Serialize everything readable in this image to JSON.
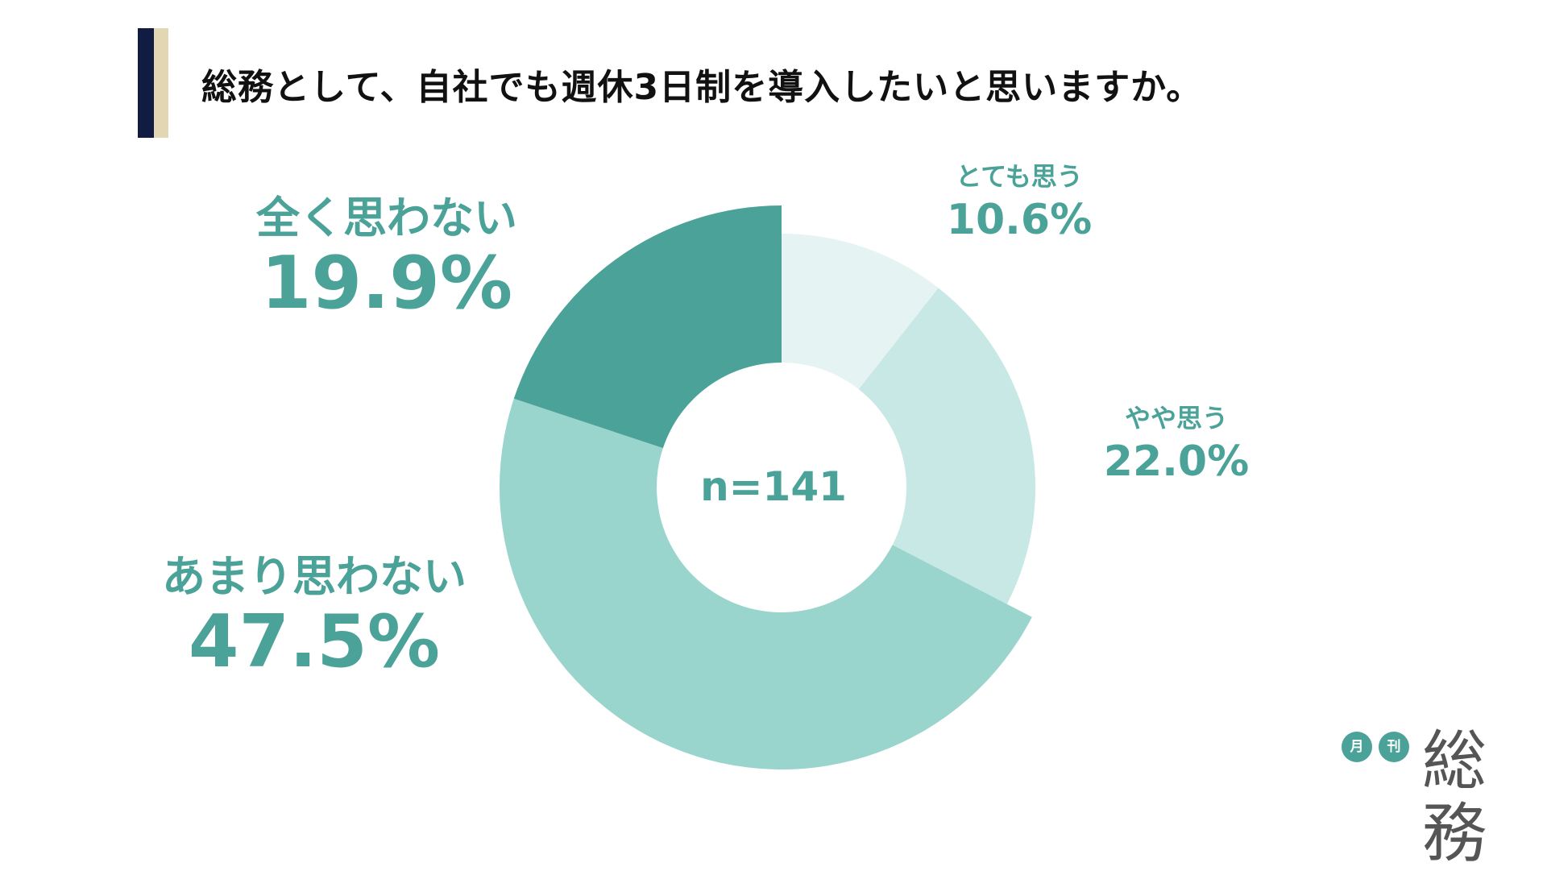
{
  "title": "総務として、自社でも週休3日制を導入したいと思いますか。",
  "center_text": "n=141",
  "brand": {
    "circle1": "月",
    "circle2": "刊",
    "wordmark": "総務"
  },
  "colors": {
    "navy_bar": "#101c42",
    "beige_bar": "#e2d7b2",
    "label_teal": "#4aa298",
    "slice_very": "#e5f3f2",
    "slice_somewhat": "#c8e8e5",
    "slice_not_much": "#9ad5cd",
    "slice_not_at_all": "#4aa298"
  },
  "chart_data": {
    "type": "pie",
    "variant": "donut",
    "slices": [
      {
        "label": "とても思う",
        "value": 10.6,
        "display": "10.6%"
      },
      {
        "label": "やや思う",
        "value": 22.0,
        "display": "22.0%"
      },
      {
        "label": "あまり思わない",
        "value": 47.5,
        "display": "47.5%"
      },
      {
        "label": "全く思わない",
        "value": 19.9,
        "display": "19.9%"
      }
    ]
  }
}
